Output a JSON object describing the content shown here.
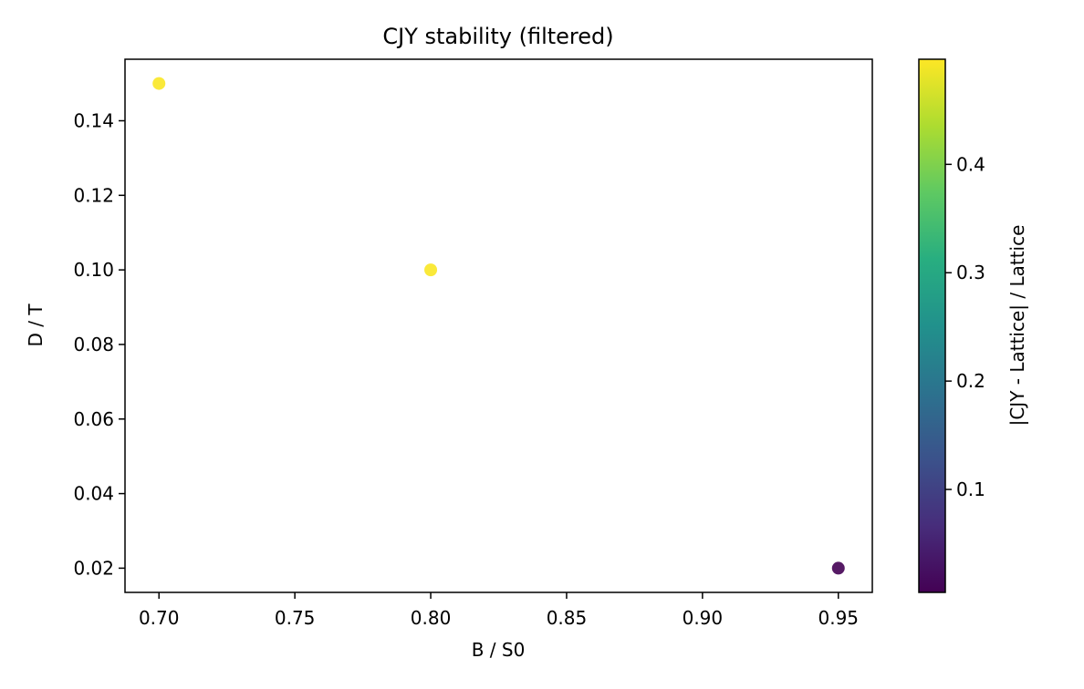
{
  "chart_data": {
    "type": "scatter",
    "title": "CJY stability (filtered)",
    "xlabel": "B / S0",
    "ylabel": "D / T",
    "xlim": [
      0.6875,
      0.9625
    ],
    "ylim": [
      0.0135,
      0.1565
    ],
    "x_ticks": [
      0.7,
      0.75,
      0.8,
      0.85,
      0.9,
      0.95
    ],
    "x_tick_labels": [
      "0.70",
      "0.75",
      "0.80",
      "0.85",
      "0.90",
      "0.95"
    ],
    "y_ticks": [
      0.02,
      0.04,
      0.06,
      0.08,
      0.1,
      0.12,
      0.14
    ],
    "y_tick_labels": [
      "0.02",
      "0.04",
      "0.06",
      "0.08",
      "0.10",
      "0.12",
      "0.14"
    ],
    "points": [
      {
        "x": 0.7,
        "y": 0.15,
        "value": 0.495
      },
      {
        "x": 0.8,
        "y": 0.1,
        "value": 0.495
      },
      {
        "x": 0.95,
        "y": 0.02,
        "value": 0.005
      }
    ],
    "colorbar": {
      "label": "|CJY - Lattice| / Lattice",
      "range": [
        0.005,
        0.497
      ],
      "ticks": [
        0.1,
        0.2,
        0.3,
        0.4
      ],
      "tick_labels": [
        "0.1",
        "0.2",
        "0.3",
        "0.4"
      ],
      "colormap": "viridis"
    },
    "grid": false,
    "legend": "none"
  }
}
